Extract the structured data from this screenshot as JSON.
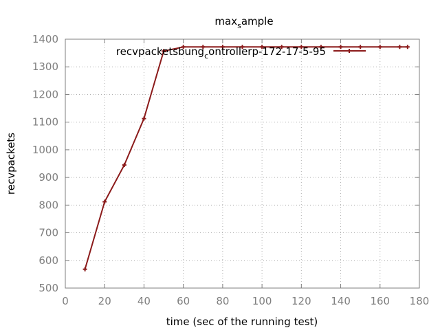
{
  "chart_data": {
    "type": "line",
    "title": "max_sample",
    "xlabel": "time (sec of the running test)",
    "ylabel": "recvpackets",
    "xlim": [
      0,
      180
    ],
    "ylim": [
      500,
      1400
    ],
    "x_ticks": [
      0,
      20,
      40,
      60,
      80,
      100,
      120,
      140,
      160,
      180
    ],
    "y_ticks": [
      500,
      600,
      700,
      800,
      900,
      1000,
      1100,
      1200,
      1300,
      1400
    ],
    "grid": true,
    "legend_position": "top-right",
    "series": [
      {
        "name": "recvpacketsbung_controllerp-172-17-5-95",
        "color": "#8b1a1a",
        "x": [
          10,
          20,
          30,
          40,
          50,
          60,
          70,
          80,
          90,
          100,
          110,
          120,
          130,
          140,
          150,
          160,
          170,
          174
        ],
        "y": [
          568,
          812,
          945,
          1113,
          1357,
          1372,
          1372,
          1372,
          1372,
          1372,
          1372,
          1372,
          1372,
          1372,
          1372,
          1372,
          1372,
          1372
        ]
      }
    ]
  }
}
